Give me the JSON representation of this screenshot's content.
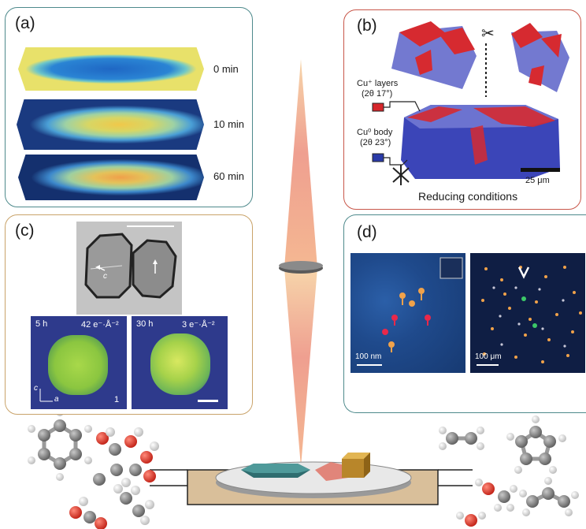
{
  "panel_a": {
    "tag": "(a)",
    "time_labels": [
      "0 min",
      "10 min",
      "60 min"
    ]
  },
  "panel_b": {
    "tag": "(b)",
    "cu_plus_label": "Cu⁺ layers",
    "cu_plus_angle": "(2θ 17°)",
    "cu0_label": "Cu⁰ body",
    "cu0_angle": "(2θ 23°)",
    "scale_bar": "25 μm",
    "caption": "Reducing conditions"
  },
  "panel_c": {
    "tag": "(c)",
    "axis_c": "c",
    "frame1_time": "5 h",
    "frame1_dose": "42 e⁻·Å⁻²",
    "frame1_index": "1",
    "frame1_axis_c": "c",
    "frame1_axis_a": "a",
    "frame2_time": "30 h",
    "frame2_dose": "3 e⁻·Å⁻²"
  },
  "panel_d": {
    "tag": "(d)",
    "scale_left": "100 nm",
    "scale_right": "100 μm"
  },
  "colors": {
    "teal_border": "#4e8a8c",
    "red_border": "#c8574a",
    "gold_border": "#c9a36a",
    "cu_plus": "#d6262b",
    "cu0": "#2a3aa8",
    "stage": "#d9bf9a"
  }
}
